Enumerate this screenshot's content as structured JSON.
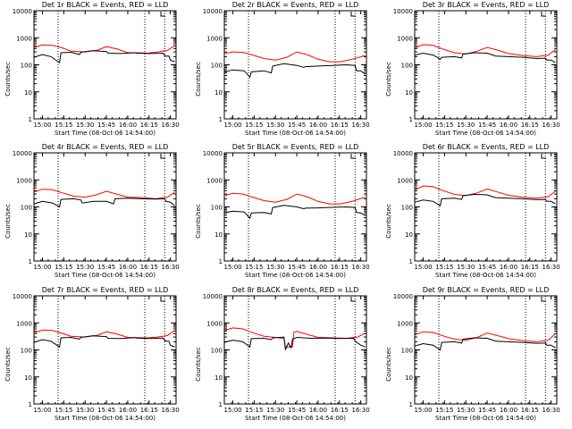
{
  "chart_data": [
    {
      "type": "line",
      "title": "Det 1r BLACK = Events, RED = LLD",
      "ylabel": "Counts/sec",
      "xlabel": "Start Time (08-Oct-06 14:54:00)",
      "x_ticks": [
        "15:00",
        "15:15",
        "15:30",
        "15:45",
        "16:00",
        "16:15",
        "16:30"
      ],
      "y_ticks": [
        "1",
        "10",
        "100",
        "1000",
        "10000"
      ],
      "y_scale": "log",
      "ylim": [
        1,
        10000
      ],
      "xlim": [
        "14:54",
        "16:34"
      ],
      "vlines": [
        "15:11",
        "16:12",
        "16:26"
      ],
      "series": [
        {
          "color": "#ff0000",
          "x": [
            "14:54",
            "15:00",
            "15:07",
            "15:14",
            "15:20",
            "15:30",
            "15:39",
            "15:45",
            "15:53",
            "16:00",
            "16:07",
            "16:14",
            "16:21",
            "16:28",
            "16:33"
          ],
          "y": [
            430,
            540,
            530,
            420,
            320,
            300,
            350,
            470,
            380,
            280,
            280,
            270,
            300,
            340,
            520
          ]
        },
        {
          "color": "#000000",
          "x": [
            "14:54",
            "15:00",
            "15:06",
            "15:12",
            "15:13",
            "15:20",
            "15:26",
            "15:27",
            "15:35",
            "15:45",
            "15:46",
            "15:55",
            "16:05",
            "16:06",
            "16:15",
            "16:25",
            "16:26",
            "16:29",
            "16:30",
            "16:33"
          ],
          "y": [
            190,
            240,
            200,
            120,
            280,
            290,
            240,
            290,
            330,
            310,
            270,
            260,
            280,
            270,
            260,
            270,
            210,
            210,
            150,
            130
          ]
        }
      ]
    },
    {
      "type": "line",
      "title": "Det 2r BLACK = Events, RED = LLD",
      "ylabel": "Counts/sec",
      "xlabel": "Start Time (08-Oct-06 14:54:00)",
      "x_ticks": [
        "15:00",
        "15:15",
        "15:30",
        "15:45",
        "16:00",
        "16:15",
        "16:30"
      ],
      "y_ticks": [
        "1",
        "10",
        "100",
        "1000",
        "10000"
      ],
      "y_scale": "log",
      "ylim": [
        1,
        10000
      ],
      "xlim": [
        "14:54",
        "16:34"
      ],
      "vlines": [
        "15:11",
        "16:12",
        "16:26"
      ],
      "series": [
        {
          "color": "#ff0000",
          "x": [
            "14:54",
            "15:00",
            "15:07",
            "15:14",
            "15:22",
            "15:30",
            "15:38",
            "15:45",
            "15:52",
            "16:00",
            "16:08",
            "16:16",
            "16:24",
            "16:33"
          ],
          "y": [
            260,
            300,
            290,
            230,
            170,
            150,
            190,
            300,
            240,
            160,
            130,
            130,
            160,
            220
          ]
        },
        {
          "color": "#000000",
          "x": [
            "14:54",
            "15:00",
            "15:08",
            "15:12",
            "15:13",
            "15:22",
            "15:27",
            "15:28",
            "15:36",
            "15:45",
            "15:50",
            "15:51",
            "16:00",
            "16:10",
            "16:20",
            "16:26",
            "16:27",
            "16:30",
            "16:33"
          ],
          "y": [
            55,
            65,
            60,
            35,
            55,
            60,
            50,
            90,
            110,
            95,
            80,
            85,
            90,
            95,
            100,
            95,
            60,
            60,
            45
          ]
        }
      ]
    },
    {
      "type": "line",
      "title": "Det 3r BLACK = Events, RED = LLD",
      "ylabel": "Counts/sec",
      "xlabel": "Start Time (08-Oct-06 14:54:00)",
      "x_ticks": [
        "15:00",
        "15:15",
        "15:30",
        "15:45",
        "16:00",
        "16:15",
        "16:30"
      ],
      "y_ticks": [
        "1",
        "10",
        "100",
        "1000",
        "10000"
      ],
      "y_scale": "log",
      "ylim": [
        1,
        10000
      ],
      "xlim": [
        "14:54",
        "16:34"
      ],
      "vlines": [
        "15:11",
        "16:12",
        "16:26"
      ],
      "series": [
        {
          "color": "#ff0000",
          "x": [
            "14:54",
            "15:00",
            "15:07",
            "15:14",
            "15:22",
            "15:30",
            "15:38",
            "15:45",
            "15:52",
            "16:00",
            "16:10",
            "16:20",
            "16:28",
            "16:33"
          ],
          "y": [
            420,
            560,
            520,
            380,
            280,
            250,
            320,
            440,
            350,
            260,
            220,
            200,
            230,
            360
          ]
        },
        {
          "color": "#000000",
          "x": [
            "14:54",
            "15:00",
            "15:07",
            "15:12",
            "15:13",
            "15:22",
            "15:27",
            "15:28",
            "15:36",
            "15:45",
            "15:50",
            "15:51",
            "16:00",
            "16:10",
            "16:20",
            "16:26",
            "16:27",
            "16:30",
            "16:33"
          ],
          "y": [
            230,
            270,
            230,
            160,
            190,
            200,
            180,
            250,
            280,
            270,
            220,
            210,
            200,
            190,
            170,
            175,
            150,
            150,
            120
          ]
        }
      ]
    },
    {
      "type": "line",
      "title": "Det 4r BLACK = Events, RED = LLD",
      "ylabel": "Counts/sec",
      "xlabel": "Start Time (08-Oct-06 14:54:00)",
      "x_ticks": [
        "15:00",
        "15:15",
        "15:30",
        "15:45",
        "16:00",
        "16:15",
        "16:30"
      ],
      "y_ticks": [
        "1",
        "10",
        "100",
        "1000",
        "10000"
      ],
      "y_scale": "log",
      "ylim": [
        1,
        10000
      ],
      "xlim": [
        "14:54",
        "16:34"
      ],
      "vlines": [
        "15:11",
        "16:12",
        "16:26"
      ],
      "series": [
        {
          "color": "#ff0000",
          "x": [
            "14:54",
            "15:00",
            "15:07",
            "15:14",
            "15:22",
            "15:30",
            "15:38",
            "15:45",
            "15:52",
            "16:00",
            "16:10",
            "16:20",
            "16:28",
            "16:33"
          ],
          "y": [
            350,
            450,
            430,
            330,
            250,
            230,
            280,
            380,
            300,
            230,
            220,
            200,
            230,
            350
          ]
        },
        {
          "color": "#000000",
          "x": [
            "14:54",
            "15:00",
            "15:07",
            "15:12",
            "15:13",
            "15:22",
            "15:27",
            "15:28",
            "15:36",
            "15:45",
            "15:50",
            "15:51",
            "16:00",
            "16:10",
            "16:20",
            "16:26",
            "16:27",
            "16:30",
            "16:33"
          ],
          "y": [
            130,
            160,
            140,
            100,
            190,
            200,
            180,
            140,
            160,
            160,
            130,
            200,
            210,
            200,
            195,
            200,
            160,
            150,
            110
          ]
        }
      ]
    },
    {
      "type": "line",
      "title": "Det 5r BLACK = Events, RED = LLD",
      "ylabel": "Counts/sec",
      "xlabel": "Start Time (08-Oct-06 14:54:00)",
      "x_ticks": [
        "15:00",
        "15:15",
        "15:30",
        "15:45",
        "16:00",
        "16:15",
        "16:30"
      ],
      "y_ticks": [
        "1",
        "10",
        "100",
        "1000",
        "10000"
      ],
      "y_scale": "log",
      "ylim": [
        1,
        10000
      ],
      "xlim": [
        "14:54",
        "16:34"
      ],
      "vlines": [
        "15:11",
        "16:12",
        "16:26"
      ],
      "series": [
        {
          "color": "#ff0000",
          "x": [
            "14:54",
            "15:00",
            "15:07",
            "15:14",
            "15:22",
            "15:30",
            "15:38",
            "15:45",
            "15:52",
            "16:00",
            "16:08",
            "16:16",
            "16:24",
            "16:33"
          ],
          "y": [
            260,
            320,
            300,
            230,
            170,
            150,
            190,
            300,
            240,
            160,
            130,
            130,
            160,
            230
          ]
        },
        {
          "color": "#000000",
          "x": [
            "14:54",
            "15:00",
            "15:08",
            "15:12",
            "15:13",
            "15:22",
            "15:27",
            "15:28",
            "15:36",
            "15:45",
            "15:50",
            "15:51",
            "16:00",
            "16:10",
            "16:20",
            "16:26",
            "16:27",
            "16:30",
            "16:33"
          ],
          "y": [
            60,
            70,
            65,
            38,
            60,
            62,
            55,
            95,
            115,
            100,
            85,
            90,
            92,
            96,
            100,
            95,
            62,
            60,
            48
          ]
        }
      ]
    },
    {
      "type": "line",
      "title": "Det 6r BLACK = Events, RED = LLD",
      "ylabel": "Counts/sec",
      "xlabel": "Start Time (08-Oct-06 14:54:00)",
      "x_ticks": [
        "15:00",
        "15:15",
        "15:30",
        "15:45",
        "16:00",
        "16:15",
        "16:30"
      ],
      "y_ticks": [
        "1",
        "10",
        "100",
        "1000",
        "10000"
      ],
      "y_scale": "log",
      "ylim": [
        1,
        10000
      ],
      "xlim": [
        "14:54",
        "16:34"
      ],
      "vlines": [
        "15:11",
        "16:12",
        "16:26"
      ],
      "series": [
        {
          "color": "#ff0000",
          "x": [
            "14:54",
            "15:00",
            "15:07",
            "15:14",
            "15:22",
            "15:30",
            "15:38",
            "15:45",
            "15:52",
            "16:00",
            "16:10",
            "16:20",
            "16:28",
            "16:33"
          ],
          "y": [
            420,
            600,
            560,
            400,
            290,
            260,
            330,
            460,
            360,
            270,
            230,
            210,
            240,
            380
          ]
        },
        {
          "color": "#000000",
          "x": [
            "14:54",
            "15:00",
            "15:07",
            "15:12",
            "15:13",
            "15:22",
            "15:27",
            "15:28",
            "15:36",
            "15:45",
            "15:50",
            "15:51",
            "16:00",
            "16:10",
            "16:20",
            "16:26",
            "16:27",
            "16:30",
            "16:33"
          ],
          "y": [
            150,
            180,
            160,
            110,
            200,
            210,
            190,
            260,
            290,
            280,
            230,
            220,
            210,
            200,
            185,
            190,
            160,
            160,
            130
          ]
        }
      ]
    },
    {
      "type": "line",
      "title": "Det 7r BLACK = Events, RED = LLD",
      "ylabel": "Counts/sec",
      "xlabel": "Start Time (08-Oct-06 14:54:00)",
      "x_ticks": [
        "15:00",
        "15:15",
        "15:30",
        "15:45",
        "16:00",
        "16:15",
        "16:30"
      ],
      "y_ticks": [
        "1",
        "10",
        "100",
        "1000",
        "10000"
      ],
      "y_scale": "log",
      "ylim": [
        1,
        10000
      ],
      "xlim": [
        "14:54",
        "16:34"
      ],
      "vlines": [
        "15:11",
        "16:12",
        "16:26"
      ],
      "series": [
        {
          "color": "#ff0000",
          "x": [
            "14:54",
            "15:00",
            "15:07",
            "15:14",
            "15:20",
            "15:30",
            "15:39",
            "15:45",
            "15:53",
            "16:00",
            "16:07",
            "16:14",
            "16:21",
            "16:28",
            "16:33"
          ],
          "y": [
            420,
            540,
            520,
            410,
            320,
            300,
            350,
            470,
            380,
            290,
            285,
            280,
            300,
            340,
            520
          ]
        },
        {
          "color": "#000000",
          "x": [
            "14:54",
            "15:00",
            "15:06",
            "15:12",
            "15:13",
            "15:20",
            "15:26",
            "15:27",
            "15:35",
            "15:45",
            "15:46",
            "15:55",
            "16:05",
            "16:06",
            "16:15",
            "16:25",
            "16:26",
            "16:29",
            "16:30",
            "16:33"
          ],
          "y": [
            190,
            240,
            210,
            130,
            280,
            290,
            250,
            290,
            330,
            310,
            270,
            265,
            285,
            275,
            265,
            275,
            215,
            210,
            150,
            130
          ]
        }
      ]
    },
    {
      "type": "line",
      "title": "Det 8r BLACK = Events, RED = LLD",
      "ylabel": "Counts/sec",
      "xlabel": "Start Time (08-Oct-06 14:54:00)",
      "x_ticks": [
        "15:00",
        "15:15",
        "15:30",
        "15:45",
        "16:00",
        "16:15",
        "16:30"
      ],
      "y_ticks": [
        "1",
        "10",
        "100",
        "1000",
        "10000"
      ],
      "y_scale": "log",
      "ylim": [
        1,
        10000
      ],
      "xlim": [
        "14:54",
        "16:34"
      ],
      "vlines": [
        "15:11",
        "16:12",
        "16:26"
      ],
      "series": [
        {
          "color": "#ff0000",
          "x": [
            "14:54",
            "15:00",
            "15:07",
            "15:14",
            "15:22",
            "15:30",
            "15:36",
            "15:37",
            "15:42",
            "15:43",
            "15:45",
            "15:52",
            "16:00",
            "16:10",
            "16:20",
            "16:28",
            "16:33"
          ],
          "y": [
            520,
            650,
            600,
            430,
            320,
            290,
            260,
            130,
            130,
            460,
            480,
            380,
            290,
            280,
            270,
            300,
            420
          ]
        },
        {
          "color": "#000000",
          "x": [
            "14:54",
            "15:00",
            "15:07",
            "15:12",
            "15:13",
            "15:22",
            "15:27",
            "15:28",
            "15:36",
            "15:37",
            "15:39",
            "15:41",
            "15:42",
            "15:45",
            "15:55",
            "16:05",
            "16:15",
            "16:25",
            "16:26",
            "16:30",
            "16:33"
          ],
          "y": [
            190,
            230,
            200,
            130,
            260,
            270,
            240,
            280,
            300,
            100,
            180,
            120,
            250,
            290,
            270,
            275,
            265,
            270,
            210,
            150,
            130
          ]
        }
      ]
    },
    {
      "type": "line",
      "title": "Det 9r BLACK = Events, RED = LLD",
      "ylabel": "Counts/sec",
      "xlabel": "Start Time (08-Oct-06 14:54:00)",
      "x_ticks": [
        "15:00",
        "15:15",
        "15:30",
        "15:45",
        "16:00",
        "16:15",
        "16:30"
      ],
      "y_ticks": [
        "1",
        "10",
        "100",
        "1000",
        "10000"
      ],
      "y_scale": "log",
      "ylim": [
        1,
        10000
      ],
      "xlim": [
        "14:54",
        "16:34"
      ],
      "vlines": [
        "15:11",
        "16:12",
        "16:26"
      ],
      "series": [
        {
          "color": "#ff0000",
          "x": [
            "14:54",
            "15:00",
            "15:07",
            "15:14",
            "15:22",
            "15:30",
            "15:38",
            "15:45",
            "15:52",
            "16:00",
            "16:10",
            "16:20",
            "16:28",
            "16:33"
          ],
          "y": [
            360,
            470,
            440,
            330,
            250,
            230,
            290,
            420,
            340,
            260,
            220,
            200,
            230,
            400
          ]
        },
        {
          "color": "#000000",
          "x": [
            "14:54",
            "15:00",
            "15:07",
            "15:12",
            "15:13",
            "15:22",
            "15:27",
            "15:28",
            "15:36",
            "15:45",
            "15:50",
            "15:51",
            "16:00",
            "16:10",
            "16:20",
            "16:26",
            "16:27",
            "16:30",
            "16:33"
          ],
          "y": [
            140,
            170,
            150,
            100,
            190,
            200,
            180,
            250,
            280,
            270,
            220,
            210,
            200,
            190,
            175,
            180,
            150,
            150,
            120
          ]
        }
      ]
    }
  ]
}
